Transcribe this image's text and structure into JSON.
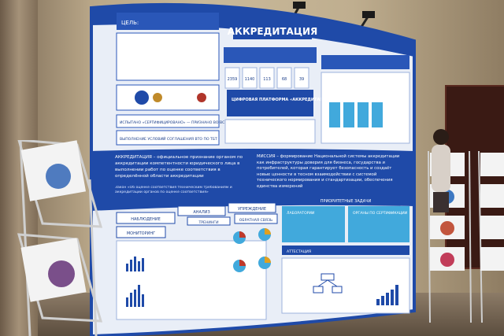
{
  "banner": {
    "header_title": "АККРЕДИТАЦИЯ",
    "goal_label": "ЦЕЛЬ:",
    "platform_label": "ЦИФРОВАЯ ПЛАТФОРМА «АККРЕДИТАЦИЯ»",
    "testing_note": "ИСПЫТАНО «СЕРТИФИЦИРОВАНО» — ПРИЗНАНО ВО ВСЁМ",
    "agreement_note": "ВЫПОЛНЕНИЕ УСЛОВИЙ СОГЛАШЕНИЯ ВТО ПО ТБТ",
    "accreditation_definition": "АККРЕДИТАЦИЯ – официальное признание органом по аккредитации компетентности юридического лица в выполнении работ по оценке соответствия в определённой области аккредитации",
    "mission_text": "МИССИЯ – формирование Национальной системы аккредитации как инфраструктуры доверия для бизнеса, государства и потребителей, которая гарантирует безопасность и создаёт новые ценности в тесном взаимодействии с системой технического нормирования и стандартизации, обеспечения единства измерений",
    "law_text": "Закон «Об оценке соответствия техническим требованиям и аккредитации органов по оценке соответствия»",
    "priority_tasks": "ПРИОРИТЕТНЫЕ ЗАДАЧИ",
    "analysis": "АНАЛИЗ",
    "monitoring": "МОНИТОРИНГ",
    "observation": "НАБЛЮДЕНИЕ",
    "warning": "УПРЕЖДЕНИЕ",
    "feedback": "ОБРАТНАЯ СВЯЗЬ",
    "training": "ТРЕНИНГИ",
    "attestation": "АТТЕСТАЦИЯ",
    "orgs_certification": "ОРГАНЫ ПО СЕРТИФИКАЦИИ",
    "labs": "ЛАБОРАТОРИИ",
    "stat_numbers": [
      "2359",
      "1140",
      "113",
      "68",
      "39",
      "11"
    ]
  },
  "colors": {
    "banner_blue": "#1f4aa8",
    "banner_light": "#e9eef7",
    "accent_cyan": "#41a9dc"
  }
}
